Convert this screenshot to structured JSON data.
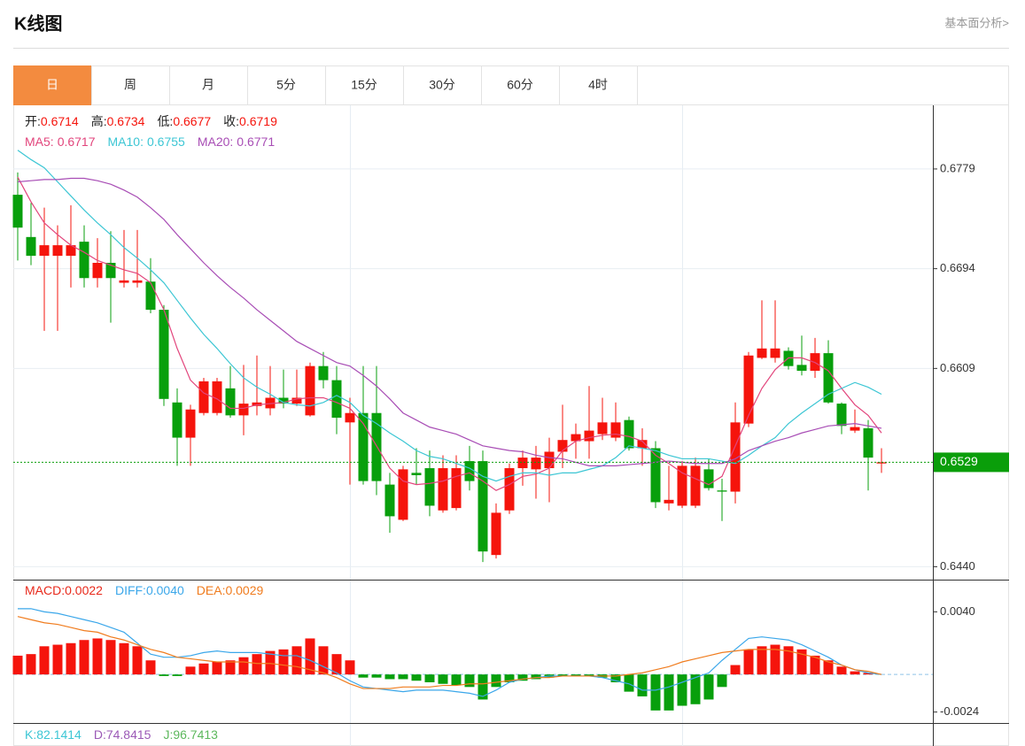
{
  "header": {
    "title": "K线图",
    "link": "基本面分析>"
  },
  "tabs": {
    "items": [
      "日",
      "周",
      "月",
      "5分",
      "15分",
      "30分",
      "60分",
      "4时"
    ],
    "active": 0,
    "active_color": "#f38b3f"
  },
  "chart_data": [
    {
      "type": "candlestick",
      "up_color": "#f5140c",
      "down_color": "#089f0c",
      "ohlc_legend": [
        {
          "label": "开:",
          "value": "0.6714"
        },
        {
          "label": "高:",
          "value": "0.6734"
        },
        {
          "label": "低:",
          "value": "0.6677"
        },
        {
          "label": "收:",
          "value": "0.6719"
        }
      ],
      "ylim": [
        0.6429,
        0.6834
      ],
      "yticks": [
        0.6779,
        0.6694,
        0.6609,
        {
          "value": 0.644,
          "label": "0.6440"
        }
      ],
      "grid": true,
      "last_price": 0.6529,
      "last_color": "#0a9e0a",
      "open": [
        0.6757,
        0.6721,
        0.6705,
        0.6705,
        0.6705,
        0.6717,
        0.6686,
        0.6699,
        0.6682,
        0.6682,
        0.6683,
        0.6659,
        0.658,
        0.655,
        0.6571,
        0.6571,
        0.6592,
        0.6569,
        0.6577,
        0.6575,
        0.6584,
        0.6579,
        0.6569,
        0.6611,
        0.6599,
        0.6563,
        0.6571,
        0.6571,
        0.651,
        0.648,
        0.652,
        0.6524,
        0.6488,
        0.649,
        0.653,
        0.653,
        0.645,
        0.6488,
        0.6524,
        0.6523,
        0.6524,
        0.6538,
        0.6547,
        0.6547,
        0.6553,
        0.655,
        0.6565,
        0.6541,
        0.6541,
        0.6494,
        0.6492,
        0.6492,
        0.6523,
        0.6505,
        0.6504,
        0.6562,
        0.6618,
        0.6618,
        0.6624,
        0.6612,
        0.6607,
        0.6622,
        0.6579,
        0.6556,
        0.6558,
        0.6528
      ],
      "high": [
        0.6776,
        0.675,
        0.6746,
        0.6731,
        0.6748,
        0.6731,
        0.672,
        0.6726,
        0.6727,
        0.6727,
        0.6703,
        0.6663,
        0.6592,
        0.6578,
        0.6601,
        0.6601,
        0.6611,
        0.6612,
        0.662,
        0.6611,
        0.6608,
        0.6608,
        0.6614,
        0.6623,
        0.6611,
        0.6584,
        0.6611,
        0.6611,
        0.652,
        0.6526,
        0.6541,
        0.6539,
        0.6535,
        0.6535,
        0.6543,
        0.6539,
        0.6494,
        0.6528,
        0.6539,
        0.6543,
        0.655,
        0.6578,
        0.6562,
        0.6594,
        0.6584,
        0.658,
        0.6568,
        0.6558,
        0.6547,
        0.6526,
        0.653,
        0.6533,
        0.6532,
        0.6515,
        0.658,
        0.6623,
        0.6667,
        0.6667,
        0.6627,
        0.6637,
        0.6635,
        0.6633,
        0.658,
        0.6574,
        0.6565,
        0.6541
      ],
      "low": [
        0.6701,
        0.6697,
        0.6641,
        0.6641,
        0.6678,
        0.6678,
        0.6678,
        0.6648,
        0.6678,
        0.6678,
        0.6656,
        0.6577,
        0.6526,
        0.6526,
        0.6569,
        0.6569,
        0.6567,
        0.6552,
        0.6569,
        0.6569,
        0.6575,
        0.6577,
        0.6568,
        0.6592,
        0.6553,
        0.651,
        0.651,
        0.6501,
        0.6469,
        0.6479,
        0.651,
        0.6483,
        0.6486,
        0.6488,
        0.6505,
        0.6444,
        0.6447,
        0.6485,
        0.6509,
        0.6498,
        0.6495,
        0.6524,
        0.6532,
        0.6532,
        0.6548,
        0.6547,
        0.6539,
        0.6526,
        0.649,
        0.6488,
        0.649,
        0.649,
        0.6505,
        0.6479,
        0.6494,
        0.6559,
        0.6617,
        0.6614,
        0.6608,
        0.6603,
        0.6601,
        0.6579,
        0.6553,
        0.6554,
        0.6505,
        0.652
      ],
      "close": [
        0.6729,
        0.6705,
        0.6714,
        0.6714,
        0.6714,
        0.6686,
        0.6699,
        0.6686,
        0.6684,
        0.6684,
        0.6659,
        0.6583,
        0.655,
        0.6574,
        0.6598,
        0.6598,
        0.6569,
        0.6579,
        0.658,
        0.6584,
        0.6579,
        0.6584,
        0.6611,
        0.6599,
        0.6567,
        0.6571,
        0.6513,
        0.6513,
        0.6483,
        0.6523,
        0.6518,
        0.6492,
        0.6524,
        0.6524,
        0.6513,
        0.6453,
        0.6486,
        0.6524,
        0.6533,
        0.6533,
        0.6538,
        0.6548,
        0.6553,
        0.6556,
        0.6563,
        0.6563,
        0.6541,
        0.6548,
        0.6495,
        0.6497,
        0.6526,
        0.6526,
        0.6507,
        0.6504,
        0.6563,
        0.662,
        0.6626,
        0.6626,
        0.6611,
        0.6607,
        0.6622,
        0.658,
        0.656,
        0.6559,
        0.6533,
        0.6529
      ],
      "ma_series": [
        {
          "name": "MA5:",
          "current": "0.6717",
          "color": "#e2457c",
          "values": [
            0.6772,
            0.6751,
            0.6733,
            0.6723,
            0.6714,
            0.6708,
            0.6701,
            0.6697,
            0.6693,
            0.669,
            0.6682,
            0.6659,
            0.6626,
            0.6599,
            0.6588,
            0.6583,
            0.6575,
            0.6575,
            0.6578,
            0.6579,
            0.658,
            0.6583,
            0.6584,
            0.6584,
            0.658,
            0.6575,
            0.6562,
            0.6543,
            0.6524,
            0.6513,
            0.651,
            0.6511,
            0.6513,
            0.6517,
            0.652,
            0.6513,
            0.6505,
            0.651,
            0.6517,
            0.6519,
            0.6524,
            0.6539,
            0.6547,
            0.655,
            0.6552,
            0.6553,
            0.6551,
            0.6547,
            0.6535,
            0.6528,
            0.652,
            0.6515,
            0.651,
            0.6517,
            0.6543,
            0.6569,
            0.6592,
            0.6608,
            0.6618,
            0.6618,
            0.6614,
            0.6607,
            0.6592,
            0.6578,
            0.6569,
            0.6554
          ]
        },
        {
          "name": "MA10:",
          "current": "0.6755",
          "color": "#3cc6d4",
          "values": [
            0.6795,
            0.6787,
            0.678,
            0.6768,
            0.6756,
            0.6744,
            0.6733,
            0.6723,
            0.6712,
            0.6703,
            0.6693,
            0.6682,
            0.6667,
            0.6652,
            0.6638,
            0.6626,
            0.6613,
            0.6601,
            0.6593,
            0.6587,
            0.658,
            0.6578,
            0.6577,
            0.658,
            0.6586,
            0.658,
            0.6569,
            0.6562,
            0.6554,
            0.6547,
            0.6539,
            0.6534,
            0.6532,
            0.6528,
            0.6524,
            0.6517,
            0.6513,
            0.6517,
            0.652,
            0.652,
            0.6518,
            0.652,
            0.652,
            0.6523,
            0.6526,
            0.6533,
            0.6543,
            0.6541,
            0.6539,
            0.6535,
            0.6532,
            0.6532,
            0.6532,
            0.653,
            0.6528,
            0.6535,
            0.6543,
            0.655,
            0.6562,
            0.6571,
            0.6579,
            0.6587,
            0.6592,
            0.6597,
            0.6593,
            0.6587
          ]
        },
        {
          "name": "MA20:",
          "current": "0.6771",
          "color": "#a84db5",
          "values": [
            0.6768,
            0.6769,
            0.677,
            0.677,
            0.6771,
            0.6771,
            0.6769,
            0.6766,
            0.6761,
            0.6755,
            0.6746,
            0.6736,
            0.6723,
            0.6711,
            0.6699,
            0.6688,
            0.6678,
            0.6669,
            0.6659,
            0.665,
            0.6641,
            0.6632,
            0.6626,
            0.662,
            0.6614,
            0.6611,
            0.6603,
            0.6594,
            0.6583,
            0.6571,
            0.6565,
            0.6559,
            0.6556,
            0.6553,
            0.6548,
            0.6543,
            0.6541,
            0.6539,
            0.6538,
            0.6535,
            0.6533,
            0.6532,
            0.6529,
            0.6526,
            0.6526,
            0.6526,
            0.6527,
            0.6528,
            0.6529,
            0.653,
            0.6529,
            0.6528,
            0.6528,
            0.6528,
            0.6532,
            0.6539,
            0.6543,
            0.6547,
            0.655,
            0.6554,
            0.6557,
            0.656,
            0.6561,
            0.6562,
            0.656,
            0.6558
          ]
        }
      ]
    },
    {
      "type": "macd",
      "up_color": "#f5140c",
      "down_color": "#089f0c",
      "zero_color": "#8fc4e8",
      "ylim": [
        -0.0031,
        0.006
      ],
      "yticks": [
        {
          "value": 0.004,
          "label": "0.0040"
        },
        -0.0024
      ],
      "series": [
        {
          "name": "MACD:",
          "current": "0.0022",
          "color": "#e8291b",
          "values": [
            0.0012,
            0.0013,
            0.0018,
            0.0019,
            0.002,
            0.0022,
            0.0023,
            0.0022,
            0.002,
            0.0018,
            0.0009,
            -0.0001,
            -0.0001,
            0.0005,
            0.0007,
            0.0008,
            0.0009,
            0.0011,
            0.0013,
            0.0015,
            0.0016,
            0.0018,
            0.0023,
            0.0018,
            0.0013,
            0.0009,
            -0.0002,
            -0.0002,
            -0.0003,
            -0.0003,
            -0.0004,
            -0.0005,
            -0.0006,
            -0.0007,
            -0.0008,
            -0.0016,
            -0.0008,
            -0.0005,
            -0.0004,
            -0.0003,
            -0.0002,
            -0.0001,
            -0.0001,
            -0.0001,
            -0.0002,
            -0.0005,
            -0.0011,
            -0.0014,
            -0.0023,
            -0.0023,
            -0.002,
            -0.0019,
            -0.0016,
            -0.0008,
            0.0006,
            0.0016,
            0.0018,
            0.0019,
            0.0018,
            0.0016,
            0.0012,
            0.0009,
            0.0005,
            0.0002,
            0.0001,
            0
          ]
        },
        {
          "name": "DIFF:",
          "current": "0.0040",
          "color": "#3ba7ea",
          "values": [
            0.0042,
            0.0042,
            0.004,
            0.0039,
            0.0037,
            0.0035,
            0.0033,
            0.003,
            0.0027,
            0.002,
            0.0013,
            0.0011,
            0.0011,
            0.0012,
            0.0014,
            0.0015,
            0.0014,
            0.0014,
            0.0014,
            0.0013,
            0.0012,
            0.0012,
            0.0009,
            0.0005,
            0.0001,
            -0.0004,
            -0.0008,
            -0.0009,
            -0.001,
            -0.0011,
            -0.001,
            -0.001,
            -0.001,
            -0.0011,
            -0.0012,
            -0.0014,
            -0.001,
            -0.0005,
            -0.0003,
            -0.0002,
            -0.0001,
            -0.0001,
            -0.0001,
            -0.0001,
            -0.0002,
            -0.0004,
            -0.0006,
            -0.001,
            -0.001,
            -0.0008,
            -0.0005,
            -0.0002,
            0.0001,
            0.0009,
            0.0016,
            0.0023,
            0.0024,
            0.0023,
            0.0022,
            0.0019,
            0.0015,
            0.0011,
            0.0006,
            0.0003,
            0.0001,
            0
          ]
        },
        {
          "name": "DEA:",
          "current": "0.0029",
          "color": "#f07c1e",
          "values": [
            0.0037,
            0.0035,
            0.0033,
            0.0032,
            0.003,
            0.0028,
            0.0027,
            0.0024,
            0.0022,
            0.0019,
            0.0016,
            0.0014,
            0.0011,
            0.001,
            0.0009,
            0.0008,
            0.0008,
            0.0008,
            0.0007,
            0.0007,
            0.0006,
            0.0005,
            0.0003,
            0.0001,
            -0.0002,
            -0.0006,
            -0.0009,
            -0.0009,
            -0.0009,
            -0.0008,
            -0.0008,
            -0.0008,
            -0.0007,
            -0.0007,
            -0.0006,
            -0.0006,
            -0.0005,
            -0.0004,
            -0.0003,
            -0.0002,
            -0.0002,
            -0.0001,
            -0.0001,
            -0.0001,
            -0.0001,
            -0.0001,
            0,
            0.0001,
            0.0003,
            0.0005,
            0.0008,
            0.001,
            0.0012,
            0.0014,
            0.0015,
            0.0016,
            0.0016,
            0.0016,
            0.0015,
            0.0013,
            0.0011,
            0.0008,
            0.0006,
            0.0003,
            0.0002,
            0
          ]
        }
      ]
    }
  ],
  "kdj": [
    {
      "label": "K:",
      "value": "82.1414",
      "color": "#3cc6d4"
    },
    {
      "label": "D:",
      "value": "74.8415",
      "color": "#9b59b6"
    },
    {
      "label": "J:",
      "value": "96.7413",
      "color": "#5cb85c"
    }
  ]
}
